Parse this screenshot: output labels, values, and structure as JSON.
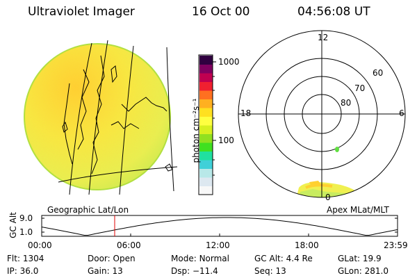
{
  "header": {
    "instrument": "Ultraviolet Imager",
    "date": "16 Oct 00",
    "time": "04:56:08 UT"
  },
  "colorbar": {
    "unit_label": "photon cm⁻²s⁻¹",
    "ticks": [
      {
        "label": "1000",
        "value": 1000
      },
      {
        "label": "100",
        "value": 100
      }
    ],
    "colors": [
      "#f8f8f8",
      "#dde8f0",
      "#b8e8e8",
      "#40d0d8",
      "#20e0a0",
      "#40e020",
      "#90e020",
      "#d8f020",
      "#ffff40",
      "#ffe020",
      "#ffb020",
      "#ff7020",
      "#f02030",
      "#c00050",
      "#800060",
      "#300040"
    ]
  },
  "left_map": {
    "label": "Geographic Lat/Lon",
    "fill_color": "#f0f060",
    "edge_color": "#b0e040"
  },
  "polar_plot": {
    "label": "Apex MLat/MLT",
    "mlt_labels": {
      "top": "12",
      "left": "18",
      "right": "6",
      "bottom": "0"
    },
    "lat_labels": [
      "60",
      "70",
      "80"
    ]
  },
  "altitude_plot": {
    "ylabel": "GC Alt",
    "yticks": [
      "9.0",
      "1.0"
    ],
    "xticks": [
      "00:00",
      "06:00",
      "12:00",
      "18:00",
      "23:59"
    ],
    "current_time": "04:56:08"
  },
  "info": {
    "row1": [
      {
        "key": "Flt:",
        "value": "1304"
      },
      {
        "key": "Door:",
        "value": "Open"
      },
      {
        "key": "Mode:",
        "value": "Normal"
      },
      {
        "key": "GC Alt:",
        "value": "4.4 Re"
      },
      {
        "key": "GLat:",
        "value": "19.9"
      }
    ],
    "row2": [
      {
        "key": "IP:",
        "value": "36.0"
      },
      {
        "key": "Gain:",
        "value": "13"
      },
      {
        "key": "Dsp:",
        "value": "−11.4"
      },
      {
        "key": "Seq:",
        "value": "13"
      },
      {
        "key": "GLon:",
        "value": "281.0"
      }
    ]
  }
}
